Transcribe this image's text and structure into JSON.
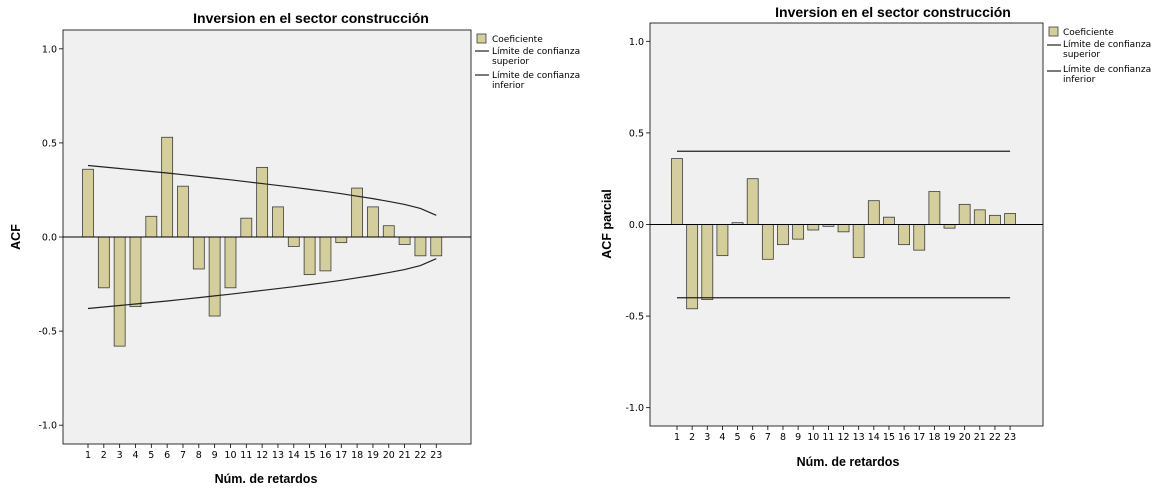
{
  "chart_data": [
    {
      "type": "bar",
      "title": "Inversion en el sector construcción",
      "xlabel": "Núm. de retardos",
      "ylabel": "ACF",
      "ylim": [
        -1.1,
        1.1
      ],
      "yticks": [
        "1.0",
        "0.5",
        "0.0",
        "-0.5",
        "-1.0"
      ],
      "ytick_values": [
        1.0,
        0.5,
        0.0,
        -0.5,
        -1.0
      ],
      "categories": [
        "1",
        "2",
        "3",
        "4",
        "5",
        "6",
        "7",
        "8",
        "9",
        "10",
        "11",
        "12",
        "13",
        "14",
        "15",
        "16",
        "17",
        "18",
        "19",
        "20",
        "21",
        "22",
        "23"
      ],
      "series": [
        {
          "name": "Coeficiente",
          "values": [
            0.36,
            -0.27,
            -0.58,
            -0.37,
            0.11,
            0.53,
            0.27,
            -0.17,
            -0.42,
            -0.27,
            0.1,
            0.37,
            0.16,
            -0.05,
            -0.2,
            -0.18,
            -0.03,
            0.26,
            0.16,
            0.06,
            -0.04,
            -0.1,
            -0.1
          ]
        }
      ],
      "upper_limit": [
        0.38,
        0.372,
        0.364,
        0.356,
        0.348,
        0.34,
        0.331,
        0.322,
        0.313,
        0.304,
        0.294,
        0.284,
        0.274,
        0.264,
        0.253,
        0.242,
        0.23,
        0.217,
        0.204,
        0.189,
        0.173,
        0.152,
        0.115
      ],
      "lower_limit": [
        -0.38,
        -0.372,
        -0.364,
        -0.356,
        -0.348,
        -0.34,
        -0.331,
        -0.322,
        -0.313,
        -0.304,
        -0.294,
        -0.284,
        -0.274,
        -0.264,
        -0.253,
        -0.242,
        -0.23,
        -0.217,
        -0.204,
        -0.189,
        -0.173,
        -0.152,
        -0.115
      ],
      "legend": {
        "placement": "right",
        "coef": "Coeficiente",
        "upper_l1": "Límite de confianza",
        "upper_l2": "superior",
        "lower_l1": "Límite de confianza",
        "lower_l2": "inferior"
      },
      "colors": {
        "bar": "#d4cf9a",
        "bar_stroke": "#3c3c3c",
        "panel": "#f0f0f0",
        "line": "#222222"
      }
    },
    {
      "type": "bar",
      "title": "Inversion en el sector construcción",
      "xlabel": "Núm. de retardos",
      "ylabel": "ACF parcial",
      "ylim": [
        -1.1,
        1.1
      ],
      "yticks": [
        "1.0",
        "0.5",
        "0.0",
        "-0.5",
        "-1.0"
      ],
      "ytick_values": [
        1.0,
        0.5,
        0.0,
        -0.5,
        -1.0
      ],
      "categories": [
        "1",
        "2",
        "3",
        "4",
        "5",
        "6",
        "7",
        "8",
        "9",
        "10",
        "11",
        "12",
        "13",
        "14",
        "15",
        "16",
        "17",
        "18",
        "19",
        "20",
        "21",
        "22",
        "23"
      ],
      "series": [
        {
          "name": "Coeficiente",
          "values": [
            0.36,
            -0.46,
            -0.41,
            -0.17,
            0.01,
            0.25,
            -0.19,
            -0.11,
            -0.08,
            -0.03,
            -0.01,
            -0.04,
            -0.18,
            0.13,
            0.04,
            -0.11,
            -0.14,
            0.18,
            -0.02,
            0.11,
            0.08,
            0.05,
            0.06
          ]
        }
      ],
      "upper_limit_value": 0.4,
      "lower_limit_value": -0.4,
      "legend": {
        "placement": "right",
        "coef": "Coeficiente",
        "upper_l1": "Límite de confianza",
        "upper_l2": "superior",
        "lower_l1": "Límite de confianza",
        "lower_l2": "inferior"
      },
      "colors": {
        "bar": "#d4cf9a",
        "bar_stroke": "#3c3c3c",
        "panel": "#f0f0f0",
        "line": "#222222"
      }
    }
  ]
}
